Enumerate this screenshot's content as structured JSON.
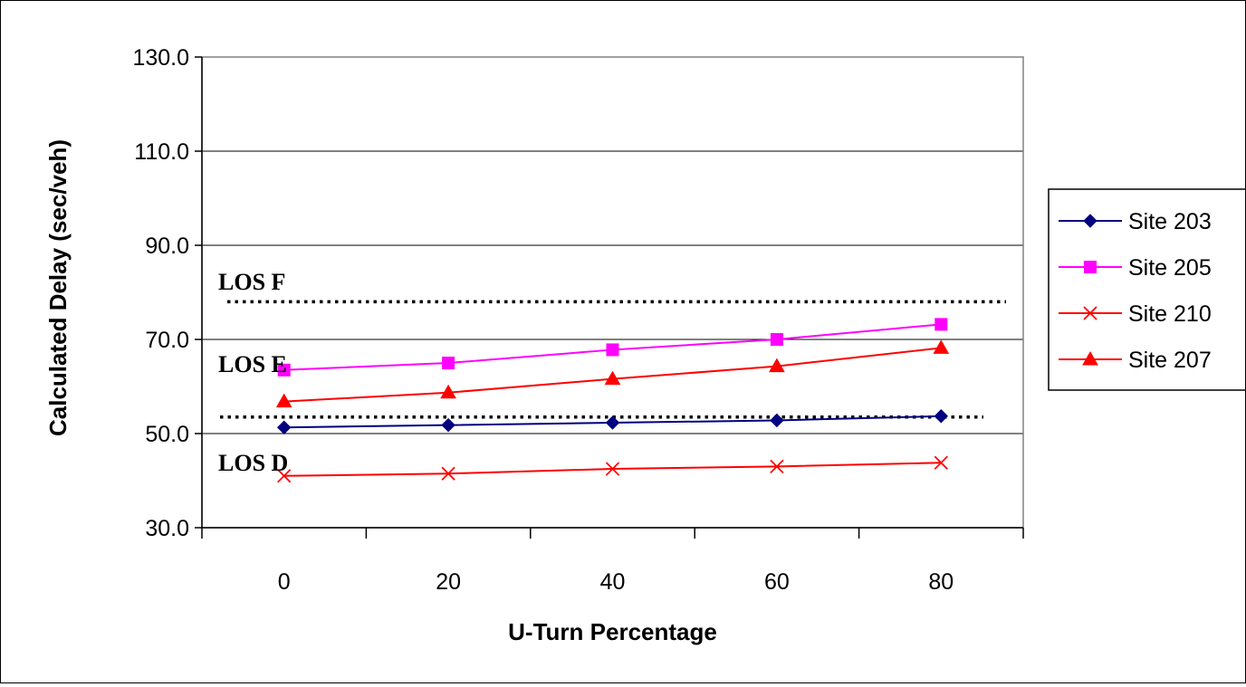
{
  "chart_data": {
    "type": "line",
    "title": "",
    "xlabel": "U-Turn Percentage",
    "ylabel": "Calculated Delay (sec/veh)",
    "categories": [
      "0",
      "20",
      "40",
      "60",
      "80"
    ],
    "x": [
      0,
      20,
      40,
      60,
      80
    ],
    "ylim": [
      30.0,
      130.0
    ],
    "y_ticks": [
      "30.0",
      "50.0",
      "70.0",
      "90.0",
      "110.0",
      "130.0"
    ],
    "y_tick_values": [
      30,
      50,
      70,
      90,
      110,
      130
    ],
    "grid": "horizontal",
    "legend_position": "right",
    "series": [
      {
        "name": "Site 203",
        "values": [
          51.3,
          51.8,
          52.3,
          52.8,
          53.7
        ],
        "color": "#000080",
        "marker": "diamond"
      },
      {
        "name": "Site 205",
        "values": [
          63.5,
          65.0,
          67.8,
          70.0,
          73.2
        ],
        "color": "#FF00FF",
        "marker": "square"
      },
      {
        "name": "Site 210",
        "values": [
          41.0,
          41.5,
          42.5,
          43.0,
          43.8
        ],
        "color": "#FF0000",
        "marker": "x"
      },
      {
        "name": "Site 207",
        "values": [
          56.8,
          58.7,
          61.6,
          64.3,
          68.2
        ],
        "color": "#FF0000",
        "marker": "triangle"
      }
    ],
    "thresholds": [
      {
        "value": 78.0
      },
      {
        "value": 53.5
      }
    ],
    "annotations": [
      {
        "text": "LOS F",
        "y": 82.5
      },
      {
        "text": "LOS E",
        "y": 65.0
      },
      {
        "text": "LOS D",
        "y": 44.0
      }
    ]
  }
}
